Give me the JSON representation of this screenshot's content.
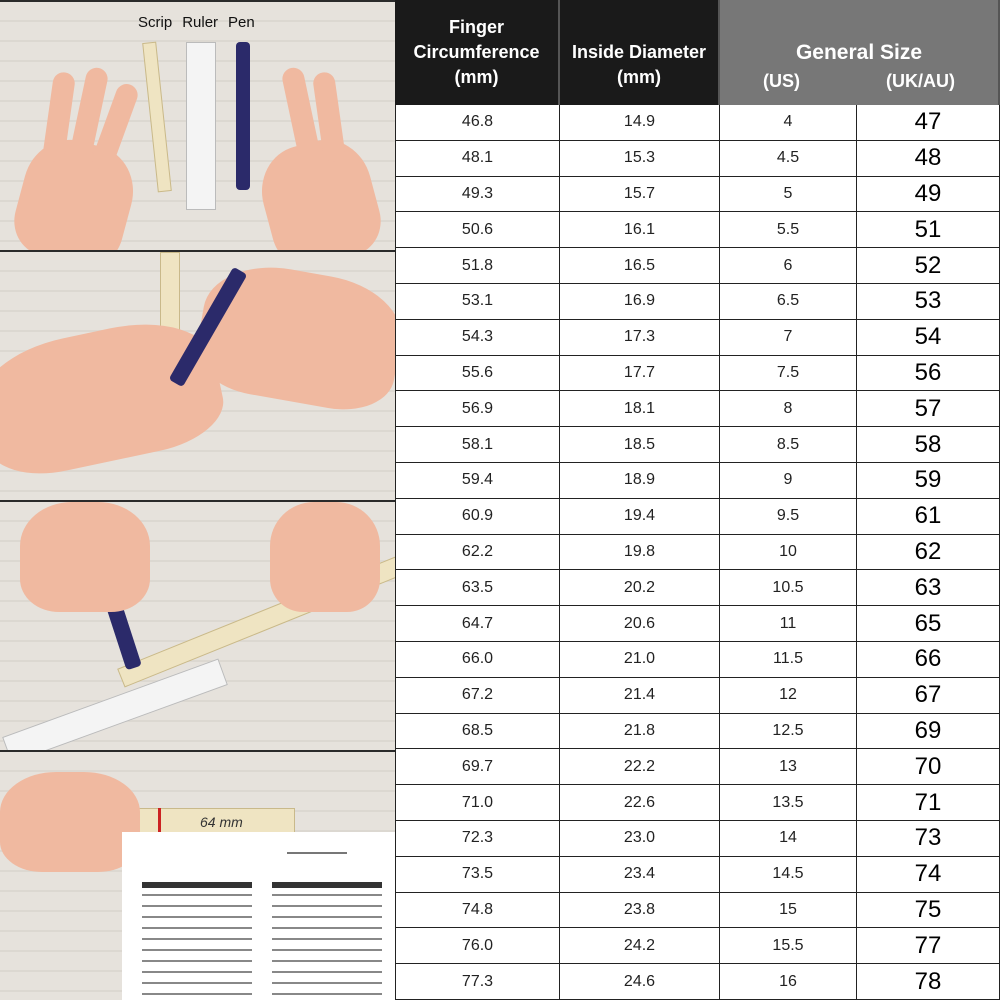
{
  "illustration": {
    "tools": [
      "Scrip",
      "Ruler",
      "Pen"
    ],
    "measurement_label": "64 mm"
  },
  "table": {
    "headers": {
      "circumference": [
        "Finger",
        "Circumference",
        "(mm)"
      ],
      "diameter": [
        "Inside Diameter",
        "(mm)"
      ],
      "general": "General Size",
      "us": "(US)",
      "ukau": "(UK/AU)"
    },
    "rows": [
      [
        "46.8",
        "14.9",
        "4",
        "47"
      ],
      [
        "48.1",
        "15.3",
        "4.5",
        "48"
      ],
      [
        "49.3",
        "15.7",
        "5",
        "49"
      ],
      [
        "50.6",
        "16.1",
        "5.5",
        "51"
      ],
      [
        "51.8",
        "16.5",
        "6",
        "52"
      ],
      [
        "53.1",
        "16.9",
        "6.5",
        "53"
      ],
      [
        "54.3",
        "17.3",
        "7",
        "54"
      ],
      [
        "55.6",
        "17.7",
        "7.5",
        "56"
      ],
      [
        "56.9",
        "18.1",
        "8",
        "57"
      ],
      [
        "58.1",
        "18.5",
        "8.5",
        "58"
      ],
      [
        "59.4",
        "18.9",
        "9",
        "59"
      ],
      [
        "60.9",
        "19.4",
        "9.5",
        "61"
      ],
      [
        "62.2",
        "19.8",
        "10",
        "62"
      ],
      [
        "63.5",
        "20.2",
        "10.5",
        "63"
      ],
      [
        "64.7",
        "20.6",
        "11",
        "65"
      ],
      [
        "66.0",
        "21.0",
        "11.5",
        "66"
      ],
      [
        "67.2",
        "21.4",
        "12",
        "67"
      ],
      [
        "68.5",
        "21.8",
        "12.5",
        "69"
      ],
      [
        "69.7",
        "22.2",
        "13",
        "70"
      ],
      [
        "71.0",
        "22.6",
        "13.5",
        "71"
      ],
      [
        "72.3",
        "23.0",
        "14",
        "73"
      ],
      [
        "73.5",
        "23.4",
        "14.5",
        "74"
      ],
      [
        "74.8",
        "23.8",
        "15",
        "75"
      ],
      [
        "76.0",
        "24.2",
        "15.5",
        "77"
      ],
      [
        "77.3",
        "24.6",
        "16",
        "78"
      ]
    ]
  }
}
